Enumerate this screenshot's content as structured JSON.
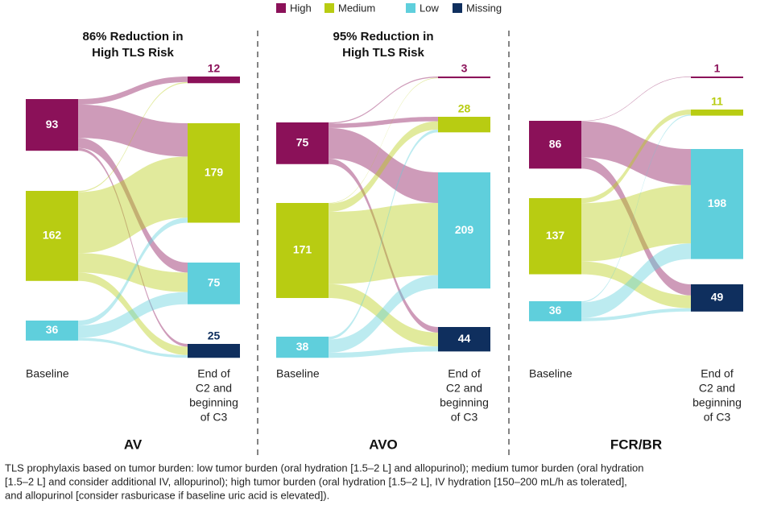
{
  "legend": [
    {
      "name": "High",
      "color": "#8b1159"
    },
    {
      "name": "Medium",
      "color": "#b8cc12"
    },
    {
      "name": "Low",
      "color": "#5fcfdc"
    },
    {
      "name": "Missing",
      "color": "#0f2f5e"
    }
  ],
  "chart_data": [
    {
      "type": "sankey",
      "name": "AV",
      "title": [
        "86% Reduction in",
        "High TLS Risk"
      ],
      "source_label": "Baseline",
      "target_label": [
        "End of",
        "C2 and",
        "beginning",
        "of C3"
      ],
      "left": [
        93,
        162,
        36
      ],
      "right": [
        12,
        179,
        75,
        25
      ],
      "flows": [
        [
          10,
          60,
          18,
          5
        ],
        [
          2,
          110,
          35,
          15
        ],
        [
          0,
          9,
          22,
          5
        ]
      ]
    },
    {
      "type": "sankey",
      "name": "AVO",
      "title": [
        "95% Reduction in",
        "High TLS Risk"
      ],
      "source_label": "Baseline",
      "target_label": [
        "End of",
        "C2 and",
        "beginning",
        "of C3"
      ],
      "left": [
        75,
        171,
        38
      ],
      "right": [
        3,
        28,
        209,
        44
      ],
      "flows": [
        [
          2,
          8,
          55,
          10
        ],
        [
          1,
          15,
          130,
          25
        ],
        [
          0,
          5,
          24,
          9
        ]
      ]
    },
    {
      "type": "sankey",
      "name": "FCR/BR",
      "source_label": "Baseline",
      "target_label": [
        "End of",
        "C2 and",
        "beginning",
        "of C3"
      ],
      "left": [
        86,
        137,
        36
      ],
      "right": [
        1,
        11,
        198,
        49
      ],
      "flows": [
        [
          1,
          0,
          65,
          20
        ],
        [
          0,
          9,
          105,
          23
        ],
        [
          0,
          2,
          28,
          6
        ]
      ]
    }
  ],
  "footnote": [
    "TLS prophylaxis based on tumor burden: low tumor burden (oral hydration [1.5–2 L] and allopurinol); medium tumor burden (oral hydration",
    "[1.5–2 L] and consider additional IV, allopurinol); high tumor burden (oral hydration [1.5–2 L], IV hydration [150–200 mL/h as tolerated],",
    "and allopurinol [consider rasburicase if baseline uric acid is elevated])."
  ]
}
